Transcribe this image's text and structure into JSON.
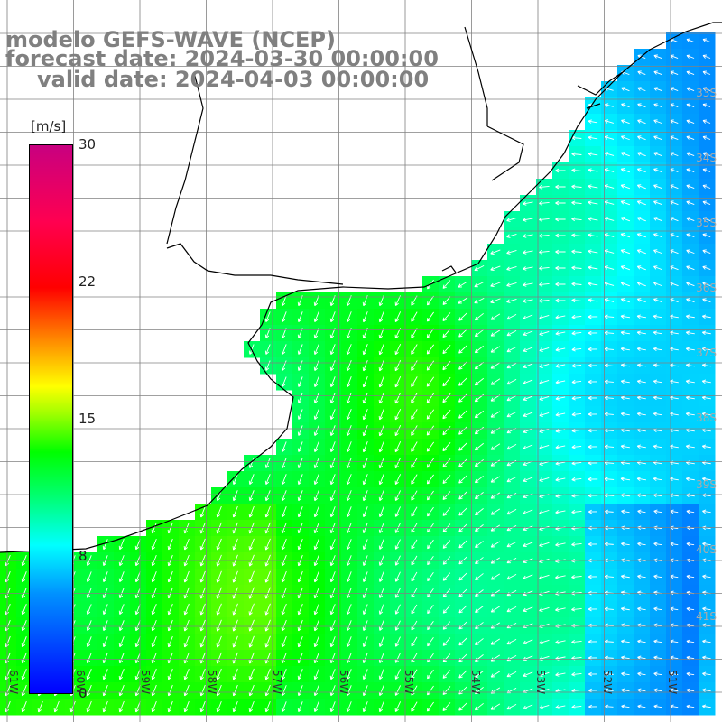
{
  "title": {
    "line1": "modelo GEFS-WAVE (NCEP)",
    "line2": "forecast date: 2024-03-30 00:00:00",
    "line3": "valid date: 2024-04-03 00:00:00"
  },
  "colorbar": {
    "unit": "[m/s]",
    "ticks": [
      "30",
      "22",
      "15",
      "8",
      "0"
    ],
    "tick_values": [
      30,
      22,
      15,
      8,
      0
    ],
    "colors": [
      "#0000ff",
      "#0090ff",
      "#00ffff",
      "#00ff00",
      "#ffff00",
      "#ff0000",
      "#c80080"
    ]
  },
  "longitude_labels": [
    "61W",
    "60W",
    "59W",
    "58W",
    "57W",
    "56W",
    "55W",
    "54W",
    "53W",
    "52W",
    "51W"
  ],
  "latitude_labels": [
    "33S",
    "34S",
    "35S",
    "36S",
    "37S",
    "38S",
    "39S",
    "40S",
    "41S"
  ],
  "field": "wind speed and direction",
  "colors": {
    "land": "#ffffff",
    "grid": "#808080",
    "coast": "#000000",
    "arrows": "#ffffff",
    "title": "#808080"
  }
}
